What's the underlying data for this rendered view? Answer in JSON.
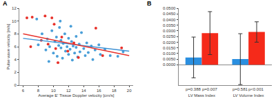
{
  "chart_data": [
    {
      "type": "scatter",
      "title": "A",
      "x_label": "Average E' Tissue Doppler velocity [cm/s]",
      "y_label": "Pulse wave velocity [m/s]",
      "xlim": [
        5.5,
        20.5
      ],
      "xticks": [
        6,
        8,
        10,
        12,
        14,
        16,
        18,
        20
      ],
      "ylim": [
        0,
        12
      ],
      "yticks": [
        0,
        2,
        4,
        6,
        8,
        10,
        12
      ],
      "grid": false,
      "series": [
        {
          "type": "scatter",
          "color": "#4a9fd8",
          "x": [
            8.0,
            8.5,
            9.0,
            9.2,
            9.5,
            9.8,
            10.0,
            10.2,
            10.4,
            10.5,
            10.7,
            10.8,
            11.0,
            11.0,
            11.2,
            11.3,
            11.5,
            11.6,
            11.8,
            12.0,
            12.0,
            12.2,
            12.4,
            12.5,
            12.6,
            12.8,
            13.0,
            13.0,
            13.2,
            13.4,
            13.5,
            13.7,
            14.0,
            14.2,
            14.4,
            14.6,
            15.0,
            15.2,
            15.5,
            16.0,
            16.2,
            16.8,
            17.5,
            18.5,
            19.2,
            9.4,
            10.9,
            12.3,
            7.8
          ],
          "values": [
            6.3,
            8.0,
            5.5,
            7.2,
            6.0,
            8.5,
            5.0,
            6.8,
            7.5,
            4.5,
            6.2,
            9.0,
            5.8,
            7.0,
            4.2,
            6.5,
            8.0,
            5.3,
            6.0,
            4.8,
            7.3,
            5.6,
            6.8,
            3.9,
            6.1,
            5.0,
            7.6,
            5.9,
            4.4,
            6.4,
            5.2,
            8.2,
            5.7,
            4.6,
            6.6,
            5.1,
            6.1,
            4.0,
            5.5,
            6.3,
            4.8,
            5.6,
            4.6,
            4.5,
            5.2,
            3.7,
            10.0,
            9.2,
            10.3
          ]
        },
        {
          "type": "scatter",
          "color": "#e8312a",
          "x": [
            6.5,
            7.2,
            7.0,
            8.4,
            8.9,
            9.3,
            9.8,
            10.3,
            10.6,
            11.1,
            11.9,
            12.7,
            13.3,
            15.6,
            16.5,
            19.0,
            10.1
          ],
          "values": [
            10.5,
            10.6,
            6.0,
            7.0,
            10.8,
            6.4,
            10.5,
            5.7,
            3.5,
            7.5,
            5.3,
            6.6,
            4.3,
            8.9,
            4.6,
            5.8,
            9.5
          ]
        },
        {
          "type": "line",
          "color": "#3b8fd3",
          "x": [
            6,
            20
          ],
          "values": [
            7.3,
            5.3
          ]
        },
        {
          "type": "line",
          "color": "#e8312a",
          "x": [
            6,
            20
          ],
          "values": [
            8.0,
            4.6
          ]
        }
      ]
    },
    {
      "type": "bar",
      "title": "B",
      "categories": [
        "LV Mass Index",
        "LV Volume Index"
      ],
      "ylim": [
        -0.018,
        0.05
      ],
      "yticks": [
        {
          "value": 0,
          "label": "0.0000"
        },
        {
          "value": 0.005,
          "label": "0.0050"
        },
        {
          "value": 0.01,
          "label": "0.0100"
        },
        {
          "value": 0.015,
          "label": "0.0150"
        },
        {
          "value": 0.02,
          "label": "0.0200"
        },
        {
          "value": 0.025,
          "label": "0.0250"
        },
        {
          "value": 0.03,
          "label": "0.0300"
        },
        {
          "value": 0.035,
          "label": "0.0350"
        },
        {
          "value": 0.04,
          "label": "0.0400"
        },
        {
          "value": 0.045,
          "label": "0.0450"
        },
        {
          "value": 0.05,
          "label": "0.0500"
        }
      ],
      "grid": false,
      "series": [
        {
          "color": "#2a8fe0",
          "values": [
            0.0065,
            0.005
          ],
          "errors": [
            0.018,
            0.0225
          ],
          "annotations": [
            "p=0.388",
            "p=0.581"
          ]
        },
        {
          "color": "#f52a1a",
          "values": [
            0.028,
            0.029
          ],
          "errors": [
            0.019,
            0.009
          ],
          "annotations": [
            "p=0.007",
            "p<0.001"
          ]
        }
      ]
    }
  ]
}
